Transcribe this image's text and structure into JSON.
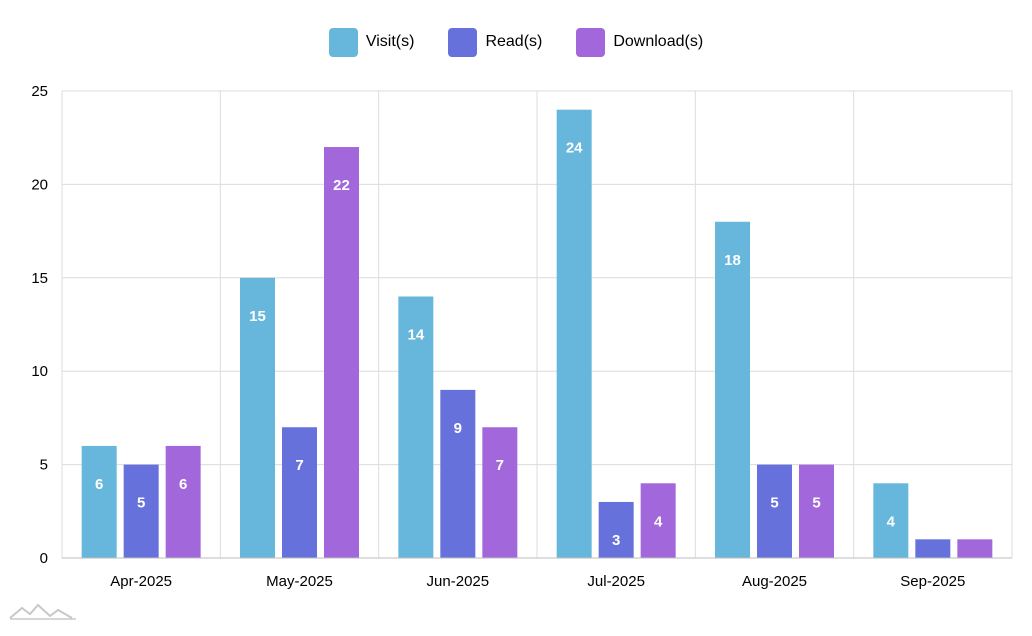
{
  "chart_data": {
    "type": "bar",
    "categories": [
      "Apr-2025",
      "May-2025",
      "Jun-2025",
      "Jul-2025",
      "Aug-2025",
      "Sep-2025"
    ],
    "series": [
      {
        "name": "Visit(s)",
        "color": "#67b7dc",
        "values": [
          6,
          15,
          14,
          24,
          18,
          4
        ]
      },
      {
        "name": "Read(s)",
        "color": "#6771dc",
        "values": [
          5,
          7,
          9,
          3,
          5,
          1
        ]
      },
      {
        "name": "Download(s)",
        "color": "#a367dc",
        "values": [
          6,
          22,
          7,
          4,
          5,
          1
        ]
      }
    ],
    "ylim": [
      0,
      25
    ],
    "yticks": [
      0,
      5,
      10,
      15,
      20,
      25
    ],
    "grid": true,
    "legend": "top-center",
    "data_labels": true
  }
}
